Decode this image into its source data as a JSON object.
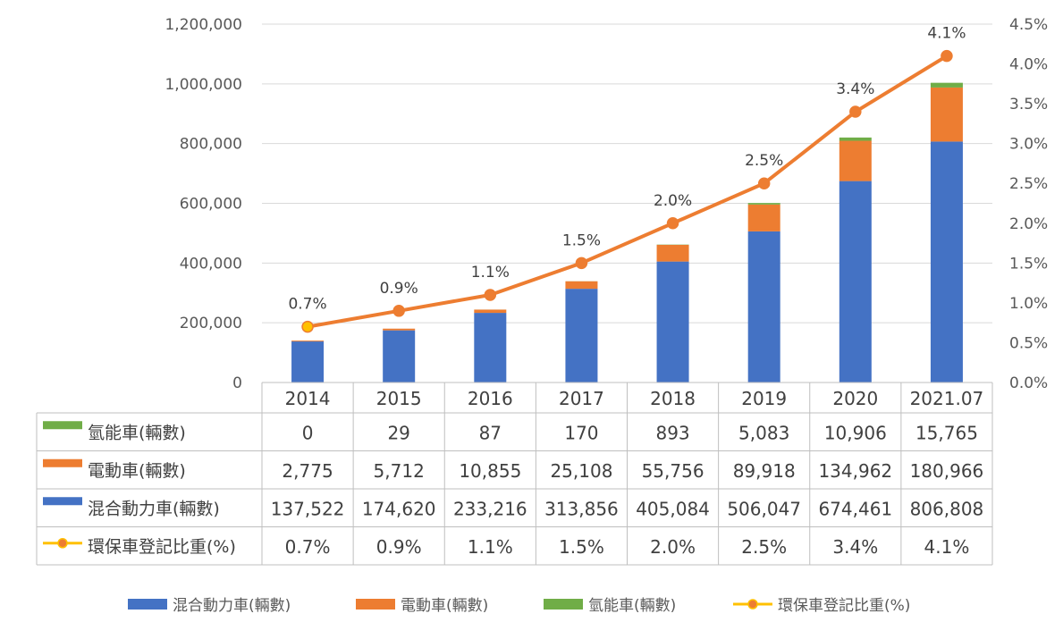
{
  "chart_data": {
    "type": "bar",
    "stacked": true,
    "categories": [
      "2014",
      "2015",
      "2016",
      "2017",
      "2018",
      "2019",
      "2020",
      "2021.07"
    ],
    "series": [
      {
        "name": "混合動力車(輛數)",
        "color": "#4472C4",
        "axis": "left",
        "kind": "bar",
        "values": [
          137522,
          174620,
          233216,
          313856,
          405084,
          506047,
          674461,
          806808
        ],
        "value_labels": [
          "137,522",
          "174,620",
          "233,216",
          "313,856",
          "405,084",
          "506,047",
          "674,461",
          "806,808"
        ]
      },
      {
        "name": "電動車(輛數)",
        "color": "#ED7D31",
        "axis": "left",
        "kind": "bar",
        "values": [
          2775,
          5712,
          10855,
          25108,
          55756,
          89918,
          134962,
          180966
        ],
        "value_labels": [
          "2,775",
          "5,712",
          "10,855",
          "25,108",
          "55,756",
          "89,918",
          "134,962",
          "180,966"
        ]
      },
      {
        "name": "氫能車(輛數)",
        "color": "#70AD47",
        "axis": "left",
        "kind": "bar",
        "values": [
          0,
          29,
          87,
          170,
          893,
          5083,
          10906,
          15765
        ],
        "value_labels": [
          "0",
          "29",
          "87",
          "170",
          "893",
          "5,083",
          "10,906",
          "15,765"
        ]
      },
      {
        "name": "環保車登記比重(%)",
        "color": "#ED7D31",
        "marker_legend_color": "#FFC000",
        "axis": "right",
        "kind": "line",
        "values": [
          0.7,
          0.9,
          1.1,
          1.5,
          2.0,
          2.5,
          3.4,
          4.1
        ],
        "value_labels": [
          "0.7%",
          "0.9%",
          "1.1%",
          "1.5%",
          "2.0%",
          "2.5%",
          "3.4%",
          "4.1%"
        ]
      }
    ],
    "y_left": {
      "range": [
        0,
        1200000
      ],
      "ticks": [
        0,
        200000,
        400000,
        600000,
        800000,
        1000000,
        1200000
      ],
      "tick_labels": [
        "0",
        "200,000",
        "400,000",
        "600,000",
        "800,000",
        "1,000,000",
        "1,200,000"
      ]
    },
    "y_right": {
      "range": [
        0,
        4.5
      ],
      "ticks": [
        0,
        0.5,
        1,
        1.5,
        2,
        2.5,
        3,
        3.5,
        4,
        4.5
      ],
      "tick_labels": [
        "0.0%",
        "0.5%",
        "1.0%",
        "1.5%",
        "2.0%",
        "2.5%",
        "3.0%",
        "3.5%",
        "4.0%",
        "4.5%"
      ]
    },
    "grid": true,
    "data_table": true,
    "table_row_order": [
      "氫能車(輛數)",
      "電動車(輛數)",
      "混合動力車(輛數)",
      "環保車登記比重(%)"
    ],
    "legend_order": [
      "混合動力車(輛數)",
      "電動車(輛數)",
      "氫能車(輛數)",
      "環保車登記比重(%)"
    ],
    "legend_position": "bottom"
  }
}
